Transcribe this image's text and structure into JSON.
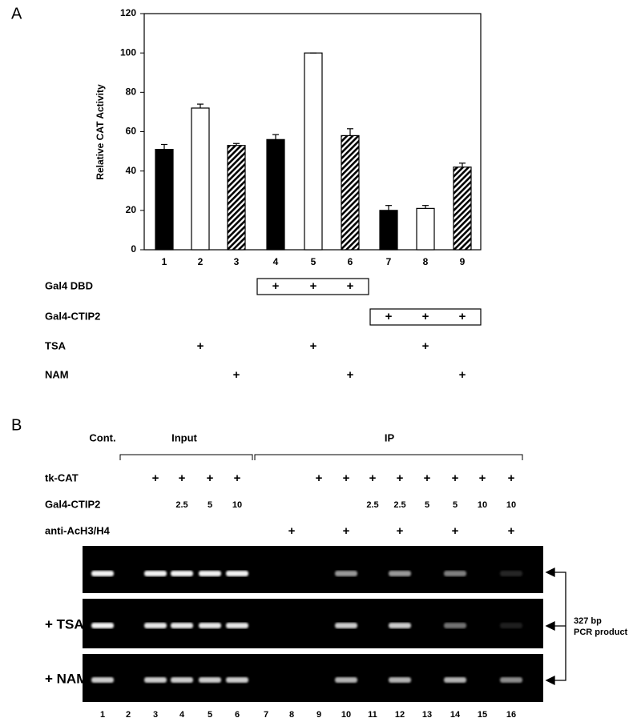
{
  "panel_a": {
    "label": "A"
  },
  "chart_data": {
    "type": "bar",
    "ylabel": "Relative CAT Activity",
    "categories": [
      "1",
      "2",
      "3",
      "4",
      "5",
      "6",
      "7",
      "8",
      "9"
    ],
    "values": [
      51,
      72,
      53,
      56,
      100,
      58,
      20,
      21,
      42
    ],
    "errors": [
      2.5,
      2,
      1,
      2.5,
      0,
      3.5,
      2.5,
      1.5,
      2
    ],
    "fills": [
      "black",
      "white",
      "hatched",
      "black",
      "white",
      "hatched",
      "black",
      "white",
      "hatched"
    ],
    "ylim": [
      0,
      120
    ],
    "yticks": [
      0,
      20,
      40,
      60,
      80,
      100,
      120
    ]
  },
  "conditions": [
    {
      "label": "Gal4 DBD",
      "boxed": true,
      "values": [
        null,
        null,
        null,
        "+",
        "+",
        "+",
        null,
        null,
        null
      ]
    },
    {
      "label": "Gal4-CTIP2",
      "boxed": true,
      "values": [
        null,
        null,
        null,
        null,
        null,
        null,
        "+",
        "+",
        "+"
      ]
    },
    {
      "label": "TSA",
      "boxed": false,
      "values": [
        null,
        "+",
        null,
        null,
        "+",
        null,
        null,
        "+",
        null
      ]
    },
    {
      "label": "NAM",
      "boxed": false,
      "values": [
        null,
        null,
        "+",
        null,
        null,
        "+",
        null,
        null,
        "+"
      ]
    }
  ],
  "panel_b": {
    "label": "B",
    "control": "Cont.",
    "input": "Input",
    "ip": "IP",
    "rows": [
      {
        "label": "tk-CAT",
        "values": [
          null,
          null,
          "+",
          "+",
          "+",
          "+",
          null,
          null,
          "+",
          "+",
          "+",
          "+",
          "+",
          "+",
          "+",
          "+"
        ]
      },
      {
        "label": "Gal4-CTIP2",
        "values": [
          null,
          null,
          null,
          "2.5",
          "5",
          "10",
          null,
          null,
          null,
          null,
          "2.5",
          "2.5",
          "5",
          "5",
          "10",
          "10"
        ]
      },
      {
        "label": "anti-AcH3/H4",
        "values": [
          null,
          null,
          null,
          null,
          null,
          null,
          null,
          "+",
          null,
          "+",
          null,
          "+",
          null,
          "+",
          null,
          "+"
        ]
      }
    ],
    "gel_labels": [
      null,
      "+ TSA",
      "+ NAM"
    ],
    "annotation": [
      "327 bp",
      "PCR product"
    ],
    "lanes": [
      "1",
      "2",
      "3",
      "4",
      "5",
      "6",
      "7",
      "8",
      "9",
      "10",
      "11",
      "12",
      "13",
      "14",
      "15",
      "16"
    ]
  }
}
